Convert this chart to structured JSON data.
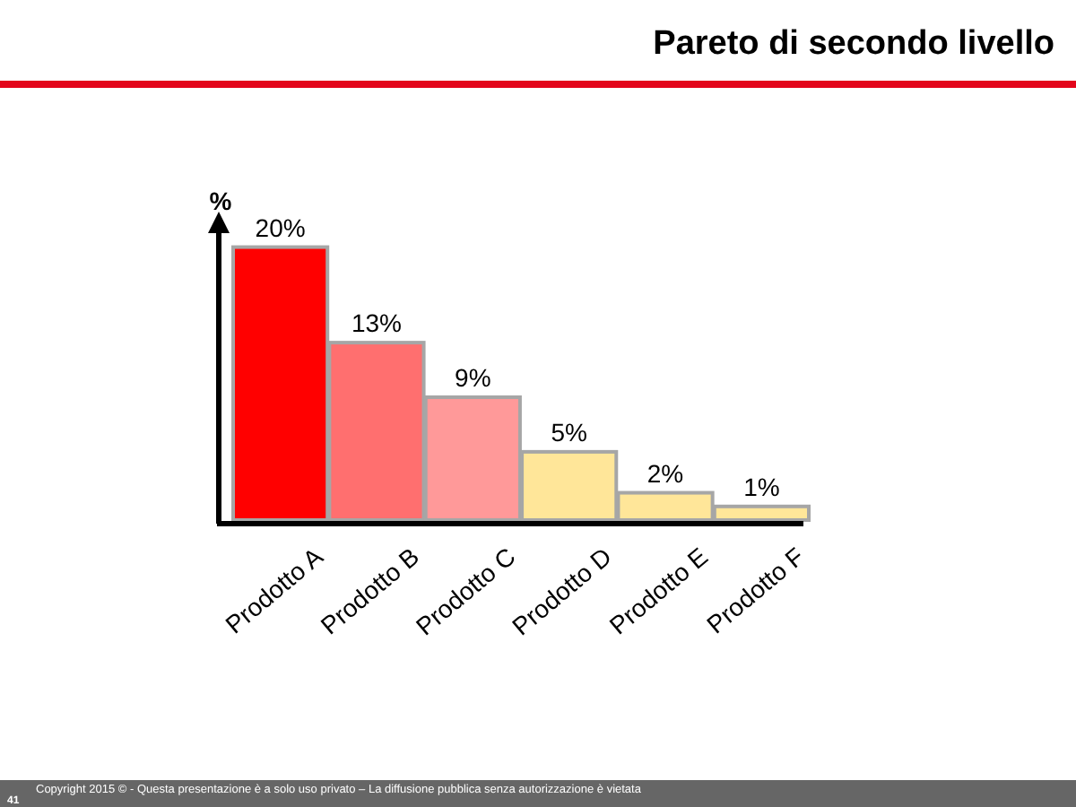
{
  "chart_data": {
    "type": "bar",
    "title": "Pareto di secondo livello",
    "ylabel": "%",
    "categories": [
      "Prodotto A",
      "Prodotto B",
      "Prodotto C",
      "Prodotto D",
      "Prodotto E",
      "Prodotto F"
    ],
    "values": [
      20,
      13,
      9,
      5,
      2,
      1
    ],
    "value_labels": [
      "20%",
      "13%",
      "9%",
      "5%",
      "2%",
      "1%"
    ],
    "colors": [
      "#ff0000",
      "#ff6f6f",
      "#ff9999",
      "#ffe699",
      "#ffe699",
      "#ffe699"
    ],
    "annotations": [
      "Copyright 2015 © - Questa presentazione è a solo uso privato – La diffusione pubblica senza autorizzazione è vietata",
      "41"
    ]
  }
}
